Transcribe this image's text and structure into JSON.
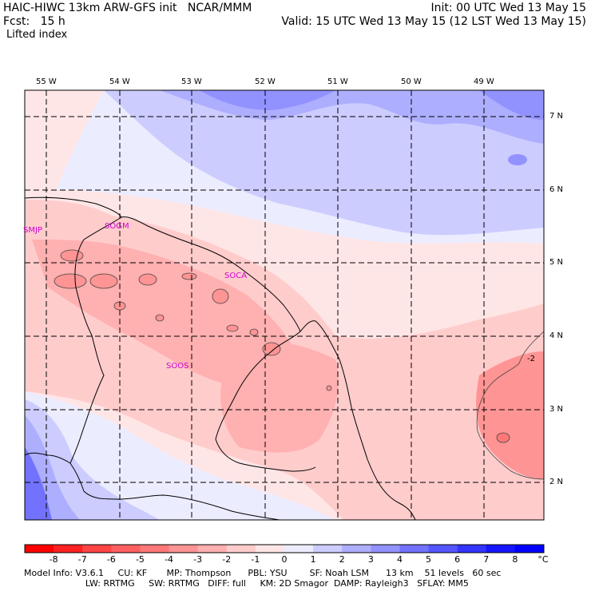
{
  "header": {
    "title_left": "HAIC-HIWC 13km ARW-GFS init   NCAR/MMM",
    "init": "Init: 00 UTC Wed 13 May 15",
    "fcst": "Fcst:   15 h",
    "valid": "Valid: 15 UTC Wed 13 May 15 (12 LST Wed 13 May 15)",
    "field": "Lifted index"
  },
  "map": {
    "lon_labels": [
      "55 W",
      "54 W",
      "53 W",
      "52 W",
      "51 W",
      "50 W",
      "49 W"
    ],
    "lat_labels": [
      "7 N",
      "6 N",
      "5 N",
      "4 N",
      "3 N",
      "2 N"
    ],
    "stations": [
      "SMJP",
      "SOGM",
      "SOCA",
      "SOOS"
    ],
    "contour_label": "-2"
  },
  "colorbar": {
    "labels": [
      "-8",
      "-7",
      "-6",
      "-5",
      "-4",
      "-3",
      "-2",
      "-1",
      "0",
      "1",
      "2",
      "3",
      "4",
      "5",
      "6",
      "7",
      "8"
    ],
    "unit": "°C",
    "colors": [
      "#ff0000",
      "#ff2222",
      "#ff4444",
      "#ff5f5f",
      "#ff7878",
      "#ff9494",
      "#ffb0b0",
      "#ffcccc",
      "#ffe6e6",
      "#ececff",
      "#ccccff",
      "#aeaeff",
      "#9292ff",
      "#7272ff",
      "#5555ff",
      "#3434ff",
      "#1515ff",
      "#0000ff"
    ]
  },
  "footer": {
    "line1": "Model Info: V3.6.1     CU: KF       MP: Thompson      PBL: YSU        SF: Noah LSM      13 km    51 levels   60 sec",
    "line2": "                      LW: RRTMG     SW: RRTMG   DIFF: full     KM: 2D Smagor  DAMP: Rayleigh3   SFLAY: MM5"
  }
}
